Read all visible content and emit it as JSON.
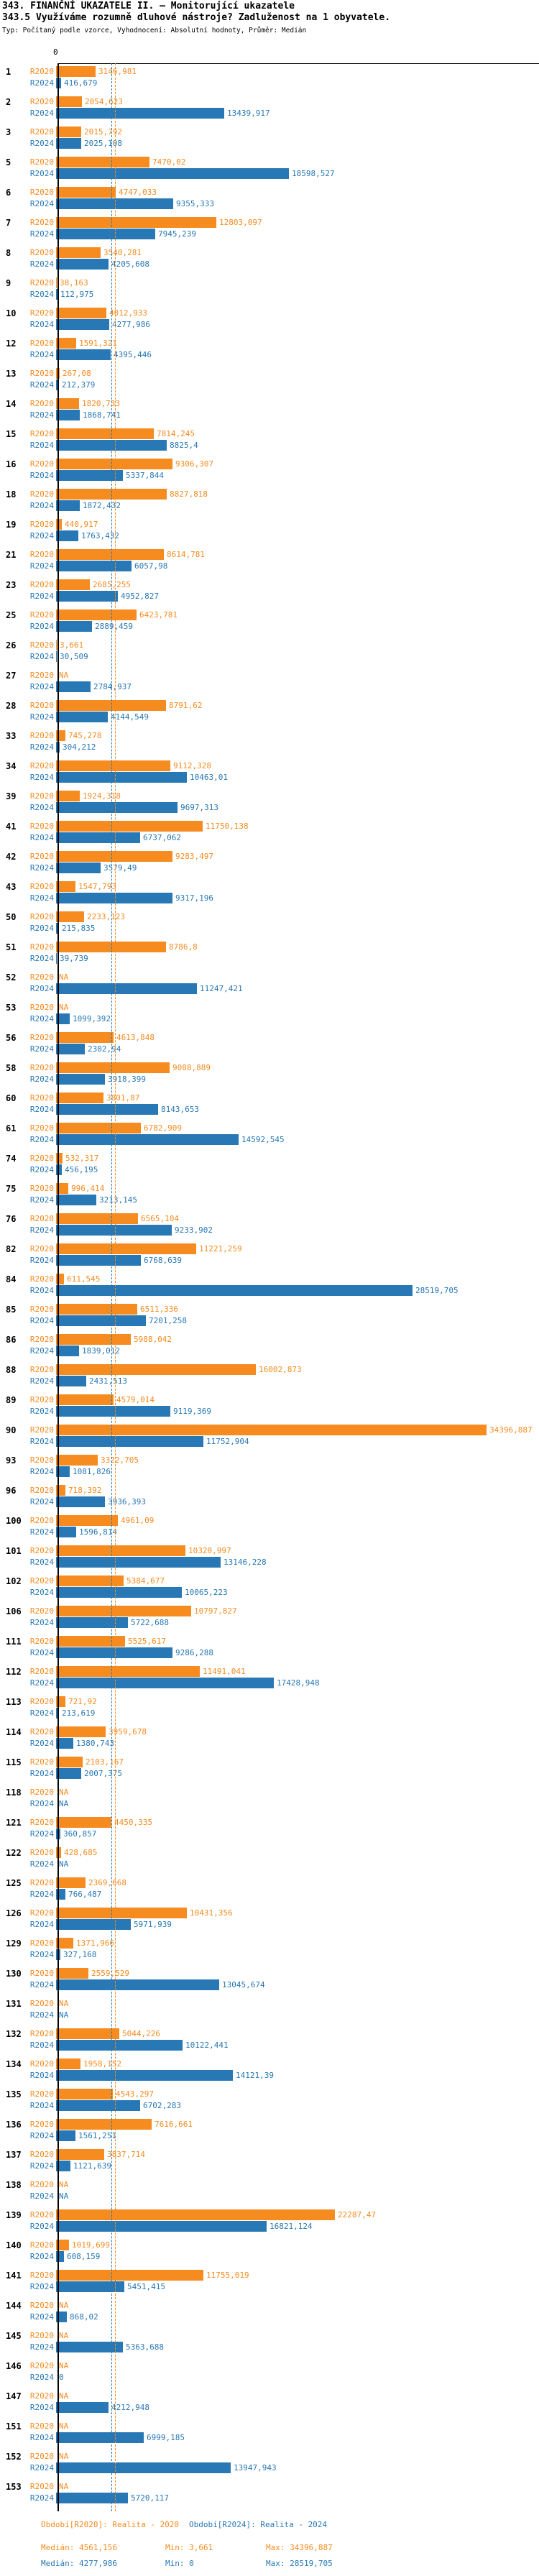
{
  "header": {
    "title": "343. FINANČNÍ UKAZATELE II. – Monitorující ukazatele",
    "subtitle": "343.5 Využíváme rozumně dluhové nástroje? Zadluženost na 1 obyvatele.",
    "meta": "Typ: Počítaný podle vzorce, Vyhodnocení: Absolutní hodnoty, Průměr: Medián"
  },
  "chart_data": {
    "type": "bar",
    "orientation": "horizontal",
    "value_unit": "Kč na 1 obyvatele",
    "axis": {
      "zero_label": "0",
      "grid": false
    },
    "series_labels": [
      "R2020",
      "R2024"
    ],
    "colors": {
      "r2020": "#F68B1F",
      "r2024": "#2878B5"
    },
    "legend_position": "per-bar-left",
    "medians": {
      "r2020": 4561.156,
      "r2024": 4277.986
    },
    "rows": [
      {
        "id": "1",
        "r2020": "3146,981",
        "r2024": "416,679"
      },
      {
        "id": "2",
        "r2020": "2054,623",
        "r2024": "13439,917"
      },
      {
        "id": "3",
        "r2020": "2015,792",
        "r2024": "2025,108"
      },
      {
        "id": "5",
        "r2020": "7470,02",
        "r2024": "18598,527"
      },
      {
        "id": "6",
        "r2020": "4747,033",
        "r2024": "9355,333"
      },
      {
        "id": "7",
        "r2020": "12803,097",
        "r2024": "7945,239"
      },
      {
        "id": "8",
        "r2020": "3540,281",
        "r2024": "4205,608"
      },
      {
        "id": "9",
        "r2020": "38,163",
        "r2024": "112,975"
      },
      {
        "id": "10",
        "r2020": "4012,933",
        "r2024": "4277,986"
      },
      {
        "id": "12",
        "r2020": "1591,321",
        "r2024": "4395,446"
      },
      {
        "id": "13",
        "r2020": "267,08",
        "r2024": "212,379"
      },
      {
        "id": "14",
        "r2020": "1820,733",
        "r2024": "1868,741"
      },
      {
        "id": "15",
        "r2020": "7814,245",
        "r2024": "8825,4"
      },
      {
        "id": "16",
        "r2020": "9306,307",
        "r2024": "5337,844"
      },
      {
        "id": "18",
        "r2020": "8827,818",
        "r2024": "1872,432"
      },
      {
        "id": "19",
        "r2020": "440,917",
        "r2024": "1763,432"
      },
      {
        "id": "21",
        "r2020": "8614,781",
        "r2024": "6057,98"
      },
      {
        "id": "23",
        "r2020": "2685,255",
        "r2024": "4952,827"
      },
      {
        "id": "25",
        "r2020": "6423,781",
        "r2024": "2889,459"
      },
      {
        "id": "26",
        "r2020": "3,661",
        "r2024": "30,509"
      },
      {
        "id": "27",
        "r2020": "NA",
        "r2024": "2784,937"
      },
      {
        "id": "28",
        "r2020": "8791,62",
        "r2024": "4144,549"
      },
      {
        "id": "33",
        "r2020": "745,278",
        "r2024": "304,212"
      },
      {
        "id": "34",
        "r2020": "9112,328",
        "r2024": "10463,01"
      },
      {
        "id": "39",
        "r2020": "1924,318",
        "r2024": "9697,313"
      },
      {
        "id": "41",
        "r2020": "11750,138",
        "r2024": "6737,062"
      },
      {
        "id": "42",
        "r2020": "9283,497",
        "r2024": "3579,49"
      },
      {
        "id": "43",
        "r2020": "1547,793",
        "r2024": "9317,196"
      },
      {
        "id": "50",
        "r2020": "2233,123",
        "r2024": "215,835"
      },
      {
        "id": "51",
        "r2020": "8786,8",
        "r2024": "39,739"
      },
      {
        "id": "52",
        "r2020": "NA",
        "r2024": "11247,421"
      },
      {
        "id": "53",
        "r2020": "NA",
        "r2024": "1099,392"
      },
      {
        "id": "56",
        "r2020": "4613,848",
        "r2024": "2302,94"
      },
      {
        "id": "58",
        "r2020": "9088,889",
        "r2024": "3918,399"
      },
      {
        "id": "60",
        "r2020": "3801,87",
        "r2024": "8143,653"
      },
      {
        "id": "61",
        "r2020": "6782,909",
        "r2024": "14592,545"
      },
      {
        "id": "74",
        "r2020": "532,317",
        "r2024": "456,195"
      },
      {
        "id": "75",
        "r2020": "996,414",
        "r2024": "3213,145"
      },
      {
        "id": "76",
        "r2020": "6565,104",
        "r2024": "9233,902"
      },
      {
        "id": "82",
        "r2020": "11221,259",
        "r2024": "6768,639"
      },
      {
        "id": "84",
        "r2020": "611,545",
        "r2024": "28519,705"
      },
      {
        "id": "85",
        "r2020": "6511,336",
        "r2024": "7201,258"
      },
      {
        "id": "86",
        "r2020": "5988,042",
        "r2024": "1839,012"
      },
      {
        "id": "88",
        "r2020": "16002,873",
        "r2024": "2431,513"
      },
      {
        "id": "89",
        "r2020": "4579,014",
        "r2024": "9119,369"
      },
      {
        "id": "90",
        "r2020": "34396,887",
        "r2024": "11752,904"
      },
      {
        "id": "93",
        "r2020": "3322,705",
        "r2024": "1081,826"
      },
      {
        "id": "96",
        "r2020": "718,392",
        "r2024": "3936,393"
      },
      {
        "id": "100",
        "r2020": "4961,09",
        "r2024": "1596,814"
      },
      {
        "id": "101",
        "r2020": "10320,997",
        "r2024": "13146,228"
      },
      {
        "id": "102",
        "r2020": "5384,677",
        "r2024": "10065,223"
      },
      {
        "id": "106",
        "r2020": "10797,827",
        "r2024": "5722,688"
      },
      {
        "id": "111",
        "r2020": "5525,617",
        "r2024": "9286,288"
      },
      {
        "id": "112",
        "r2020": "11491,041",
        "r2024": "17428,948"
      },
      {
        "id": "113",
        "r2020": "721,92",
        "r2024": "213,619"
      },
      {
        "id": "114",
        "r2020": "3959,678",
        "r2024": "1380,743"
      },
      {
        "id": "115",
        "r2020": "2103,167",
        "r2024": "2007,375"
      },
      {
        "id": "118",
        "r2020": "NA",
        "r2024": "NA"
      },
      {
        "id": "121",
        "r2020": "4450,335",
        "r2024": "360,857"
      },
      {
        "id": "122",
        "r2020": "428,685",
        "r2024": "NA"
      },
      {
        "id": "125",
        "r2020": "2369,668",
        "r2024": "766,487"
      },
      {
        "id": "126",
        "r2020": "10431,356",
        "r2024": "5971,939"
      },
      {
        "id": "129",
        "r2020": "1371,966",
        "r2024": "327,168"
      },
      {
        "id": "130",
        "r2020": "2559,529",
        "r2024": "13045,674"
      },
      {
        "id": "131",
        "r2020": "NA",
        "r2024": "NA"
      },
      {
        "id": "132",
        "r2020": "5044,226",
        "r2024": "10122,441"
      },
      {
        "id": "134",
        "r2020": "1958,152",
        "r2024": "14121,39"
      },
      {
        "id": "135",
        "r2020": "4543,297",
        "r2024": "6702,283"
      },
      {
        "id": "136",
        "r2020": "7616,661",
        "r2024": "1561,251"
      },
      {
        "id": "137",
        "r2020": "3837,714",
        "r2024": "1121,639"
      },
      {
        "id": "138",
        "r2020": "NA",
        "r2024": "NA"
      },
      {
        "id": "139",
        "r2020": "22287,47",
        "r2024": "16821,124"
      },
      {
        "id": "140",
        "r2020": "1019,699",
        "r2024": "608,159"
      },
      {
        "id": "141",
        "r2020": "11755,019",
        "r2024": "5451,415"
      },
      {
        "id": "144",
        "r2020": "NA",
        "r2024": "868,02"
      },
      {
        "id": "145",
        "r2020": "NA",
        "r2024": "5363,688"
      },
      {
        "id": "146",
        "r2020": "NA",
        "r2024": "0"
      },
      {
        "id": "147",
        "r2020": "NA",
        "r2024": "4212,948"
      },
      {
        "id": "151",
        "r2020": "NA",
        "r2024": "6999,185"
      },
      {
        "id": "152",
        "r2020": "NA",
        "r2024": "13947,943"
      },
      {
        "id": "153",
        "r2020": "NA",
        "r2024": "5720,117"
      }
    ]
  },
  "footer": {
    "period_2020": "Období[R2020]: Realita - 2020",
    "period_2024": "Období[R2024]: Realita - 2024",
    "median_2020": "Medián: 4561,156",
    "median_2024": "Medián: 4277,986",
    "min_2020": "Min: 3,661",
    "min_2024": "Min: 0",
    "max_2020": "Max: 34396,887",
    "max_2024": "Max: 28519,705"
  }
}
